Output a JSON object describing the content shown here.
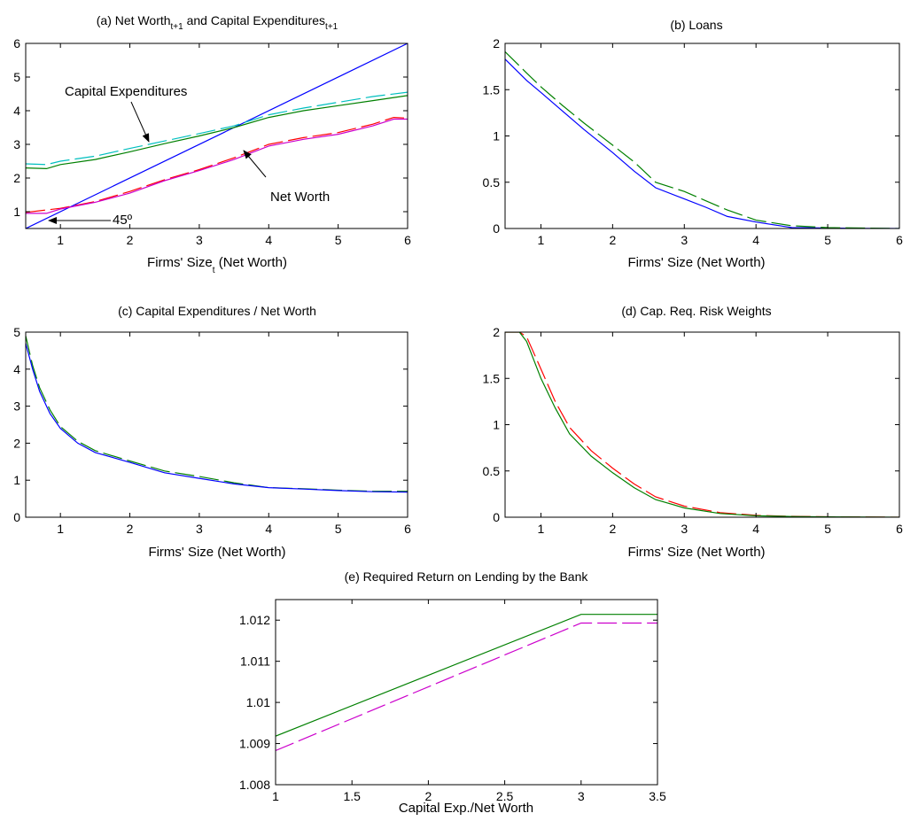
{
  "chart_data": [
    {
      "panel": "a",
      "type": "line",
      "title_main": "(a) Net Worth",
      "title_sub1": "t+1",
      "title_mid": " and Capital Expenditures",
      "title_sub2": "t+1",
      "xlabel_main": "Firms' Size",
      "xlabel_sub": "t",
      "xlabel_end": " (Net Worth)",
      "xlim": [
        0.5,
        6
      ],
      "ylim": [
        0.5,
        6
      ],
      "xticks": [
        1,
        2,
        3,
        4,
        5,
        6
      ],
      "yticks": [
        1,
        2,
        3,
        4,
        5,
        6
      ],
      "annotations": [
        {
          "text": "Capital Expenditures"
        },
        {
          "text": "Net Worth"
        },
        {
          "text": "45º"
        }
      ],
      "series": [
        {
          "color": "#0000ff",
          "dashed": false,
          "x": [
            0.5,
            6
          ],
          "y": [
            0.5,
            6
          ]
        },
        {
          "color": "#008000",
          "dashed": false,
          "x": [
            0.5,
            0.8,
            1,
            1.5,
            2,
            2.5,
            3,
            3.5,
            4,
            4.5,
            5,
            5.5,
            6
          ],
          "y": [
            2.3,
            2.28,
            2.4,
            2.55,
            2.78,
            3.02,
            3.25,
            3.5,
            3.8,
            4.0,
            4.15,
            4.3,
            4.45
          ]
        },
        {
          "color": "#00bfbf",
          "dashed": true,
          "x": [
            0.5,
            0.8,
            1,
            1.5,
            2,
            2.5,
            3,
            3.5,
            4,
            4.5,
            5,
            5.5,
            6
          ],
          "y": [
            2.42,
            2.4,
            2.5,
            2.65,
            2.88,
            3.1,
            3.32,
            3.55,
            3.88,
            4.08,
            4.25,
            4.42,
            4.55
          ]
        },
        {
          "color": "#ff0000",
          "dashed": true,
          "x": [
            0.5,
            1,
            1.5,
            2,
            2.5,
            3,
            3.5,
            4,
            4.5,
            5,
            5.5,
            5.8,
            6
          ],
          "y": [
            0.98,
            1.1,
            1.3,
            1.6,
            1.95,
            2.25,
            2.6,
            3.0,
            3.2,
            3.35,
            3.6,
            3.8,
            3.78
          ]
        },
        {
          "color": "#cc00cc",
          "dashed": false,
          "x": [
            0.5,
            0.8,
            1,
            1.5,
            2,
            2.5,
            3,
            3.5,
            4,
            4.5,
            5,
            5.5,
            5.8,
            6
          ],
          "y": [
            0.95,
            0.95,
            1.08,
            1.28,
            1.55,
            1.92,
            2.22,
            2.55,
            2.95,
            3.15,
            3.3,
            3.55,
            3.75,
            3.75
          ]
        }
      ]
    },
    {
      "panel": "b",
      "type": "line",
      "title": "(b) Loans",
      "xlabel": "Firms' Size (Net Worth)",
      "xlim": [
        0.5,
        6
      ],
      "ylim": [
        0,
        2
      ],
      "xticks": [
        1,
        2,
        3,
        4,
        5,
        6
      ],
      "yticks": [
        0,
        0.5,
        1,
        1.5,
        2
      ],
      "series": [
        {
          "color": "#0000ff",
          "dashed": false,
          "x": [
            0.5,
            0.8,
            1,
            1.3,
            1.6,
            2,
            2.3,
            2.6,
            3,
            3.3,
            3.6,
            4,
            4.5,
            5,
            5.5,
            6
          ],
          "y": [
            1.83,
            1.6,
            1.47,
            1.27,
            1.07,
            0.82,
            0.62,
            0.44,
            0.32,
            0.23,
            0.13,
            0.07,
            0.01,
            0.005,
            0.002,
            0
          ]
        },
        {
          "color": "#008000",
          "dashed": true,
          "x": [
            0.5,
            0.8,
            1,
            1.3,
            1.6,
            2,
            2.3,
            2.6,
            3,
            3.3,
            3.6,
            4,
            4.5,
            5,
            5.5,
            6
          ],
          "y": [
            1.91,
            1.68,
            1.53,
            1.33,
            1.14,
            0.9,
            0.72,
            0.5,
            0.4,
            0.3,
            0.2,
            0.09,
            0.03,
            0.01,
            0.005,
            0
          ]
        }
      ]
    },
    {
      "panel": "c",
      "type": "line",
      "title": "(c) Capital Expenditures / Net Worth",
      "xlabel": "Firms' Size (Net Worth)",
      "xlim": [
        0.5,
        6
      ],
      "ylim": [
        0,
        5
      ],
      "xticks": [
        1,
        2,
        3,
        4,
        5,
        6
      ],
      "yticks": [
        0,
        1,
        2,
        3,
        4,
        5
      ],
      "series": [
        {
          "color": "#008000",
          "dashed": true,
          "x": [
            0.5,
            0.6,
            0.7,
            0.85,
            1,
            1.25,
            1.5,
            2,
            2.5,
            3,
            3.5,
            4,
            4.5,
            5,
            5.5,
            6
          ],
          "y": [
            4.9,
            4.1,
            3.5,
            2.9,
            2.45,
            2.05,
            1.8,
            1.52,
            1.25,
            1.1,
            0.93,
            0.8,
            0.77,
            0.73,
            0.7,
            0.7
          ]
        },
        {
          "color": "#0000ff",
          "dashed": false,
          "x": [
            0.5,
            0.6,
            0.7,
            0.85,
            1,
            1.25,
            1.5,
            2,
            2.5,
            3,
            3.5,
            4,
            4.5,
            5,
            5.5,
            6
          ],
          "y": [
            4.7,
            4.0,
            3.4,
            2.8,
            2.4,
            2.0,
            1.75,
            1.48,
            1.2,
            1.05,
            0.9,
            0.8,
            0.76,
            0.72,
            0.69,
            0.68
          ]
        }
      ]
    },
    {
      "panel": "d",
      "type": "line",
      "title": "(d) Cap. Req. Risk Weights",
      "xlabel": "Firms' Size (Net Worth)",
      "xlim": [
        0.5,
        6
      ],
      "ylim": [
        0,
        2
      ],
      "xticks": [
        1,
        2,
        3,
        4,
        5,
        6
      ],
      "yticks": [
        0,
        0.5,
        1,
        1.5,
        2
      ],
      "series": [
        {
          "color": "#ff0000",
          "dashed": true,
          "x": [
            0.5,
            0.7,
            0.8,
            1,
            1.2,
            1.4,
            1.7,
            2,
            2.3,
            2.6,
            3,
            3.5,
            4,
            4.5,
            5,
            6
          ],
          "y": [
            2,
            2,
            1.95,
            1.6,
            1.25,
            0.97,
            0.72,
            0.53,
            0.36,
            0.22,
            0.12,
            0.05,
            0.02,
            0.01,
            0.005,
            0
          ]
        },
        {
          "color": "#008000",
          "dashed": false,
          "x": [
            0.5,
            0.7,
            0.8,
            1,
            1.2,
            1.4,
            1.7,
            2,
            2.3,
            2.6,
            3,
            3.5,
            4,
            4.5,
            5,
            6
          ],
          "y": [
            2,
            2,
            1.9,
            1.5,
            1.18,
            0.9,
            0.66,
            0.48,
            0.32,
            0.19,
            0.1,
            0.04,
            0.015,
            0.008,
            0.004,
            0
          ]
        }
      ]
    },
    {
      "panel": "e",
      "type": "line",
      "title": "(e) Required Return on Lending by the Bank",
      "xlabel": "Capital Exp./Net Worth",
      "xlim": [
        1,
        3.5
      ],
      "ylim": [
        1.008,
        1.0125
      ],
      "xticks": [
        1,
        1.5,
        2,
        2.5,
        3,
        3.5
      ],
      "yticks": [
        1.008,
        1.009,
        1.01,
        1.011,
        1.012
      ],
      "ytick_labels": [
        "1.008",
        "1.009",
        "1.01",
        "1.011",
        "1.012"
      ],
      "series": [
        {
          "color": "#008000",
          "dashed": false,
          "x": [
            1,
            3,
            3.5
          ],
          "y": [
            1.00918,
            1.01214,
            1.01214
          ]
        },
        {
          "color": "#cc00cc",
          "dashed": true,
          "x": [
            1,
            3,
            3.5
          ],
          "y": [
            1.00883,
            1.01193,
            1.01193
          ]
        }
      ]
    }
  ]
}
